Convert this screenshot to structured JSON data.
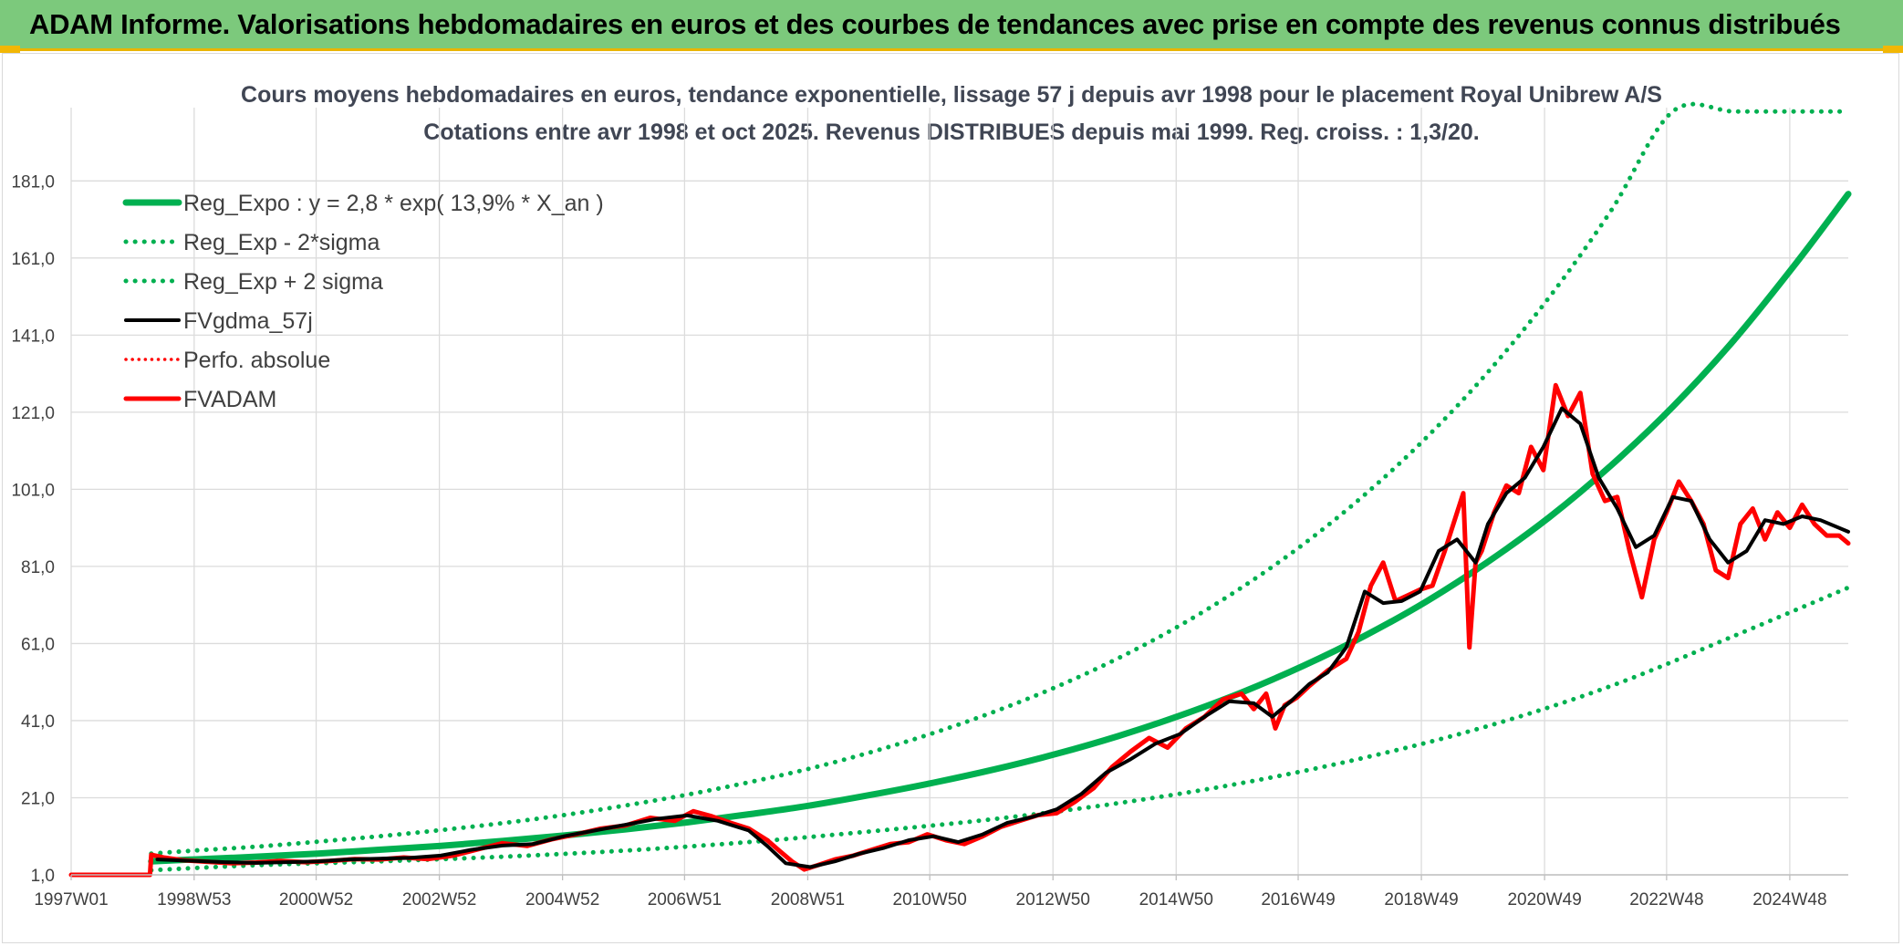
{
  "banner": {
    "title": "ADAM Informe. Valorisations hebdomadaires en euros et des courbes de tendances avec prise en compte des revenus connus distribués"
  },
  "chart_data": {
    "type": "line",
    "title": "Cours moyens hebdomadaires en euros, tendance exponentielle, lissage 57 j depuis avr 1998 pour le placement Royal Unibrew A/S",
    "subtitle": "Cotations entre avr 1998 et oct 2025. Revenus DISTRIBUES depuis mai 1999. Reg. croiss. : 1,3/20.",
    "y_ticks": [
      "1,0",
      "21,0",
      "41,0",
      "61,0",
      "81,0",
      "101,0",
      "121,0",
      "141,0",
      "161,0",
      "181,0"
    ],
    "ylim": [
      1,
      200
    ],
    "x_ticks": [
      "1997W01",
      "1998W53",
      "2000W52",
      "2002W52",
      "2004W52",
      "2006W51",
      "2008W51",
      "2010W50",
      "2012W50",
      "2014W50",
      "2016W49",
      "2018W49",
      "2020W49",
      "2022W48",
      "2024W48"
    ],
    "xlim": [
      1997.0,
      2025.85
    ],
    "grid": true,
    "legend_position": "top-left",
    "legend": [
      {
        "label": "Reg_Expo : y = 2,8 * exp( 13,9% *  X_an )",
        "color": "#00b050",
        "style": "solid-thick"
      },
      {
        "label": "Reg_Exp - 2*sigma",
        "color": "#00b050",
        "style": "dotted"
      },
      {
        "label": "Reg_Exp + 2 sigma",
        "color": "#00b050",
        "style": "dotted"
      },
      {
        "label": "FVgdma_57j",
        "color": "#000000",
        "style": "solid"
      },
      {
        "label": "Perfo. absolue",
        "color": "#ff0000",
        "style": "dotted"
      },
      {
        "label": "FVADAM",
        "color": "#ff0000",
        "style": "solid-thick"
      }
    ],
    "series": [
      {
        "name": "Reg_Expo : y = 2,8 * exp( 13,9% *  X_an )",
        "color": "#00b050",
        "x": [
          1998.3,
          1999,
          2000,
          2001,
          2002,
          2003,
          2004,
          2005,
          2006,
          2007,
          2008,
          2009,
          2010,
          2011,
          2012,
          2013,
          2014,
          2015,
          2016,
          2017,
          2018,
          2019,
          2020,
          2021,
          2022,
          2023,
          2024,
          2025,
          2025.85
        ],
        "values": [
          4.5,
          5.0,
          5.7,
          6.5,
          7.5,
          8.5,
          9.8,
          11.2,
          12.8,
          14.6,
          16.7,
          19.0,
          21.8,
          24.9,
          28.4,
          32.4,
          37.0,
          42.3,
          48.3,
          55.2,
          63.0,
          71.9,
          82.2,
          93.8,
          107.2,
          122.4,
          139.8,
          159.6,
          177.6
        ]
      },
      {
        "name": "Reg_Exp - 2*sigma",
        "color": "#00b050",
        "x": [
          1998.3,
          2000,
          2002,
          2004,
          2006,
          2008,
          2010,
          2012,
          2014,
          2016,
          2018,
          2020,
          2022,
          2024,
          2025.85
        ],
        "values": [
          2.2,
          3.5,
          4.5,
          5.7,
          7.3,
          9.5,
          12.3,
          15.5,
          19.6,
          24.8,
          31.4,
          39.6,
          50.0,
          63.0,
          75.5
        ]
      },
      {
        "name": "Reg_Exp + 2 sigma",
        "color": "#00b050",
        "x": [
          1998.3,
          1999,
          2000,
          2001,
          2002,
          2003,
          2004,
          2005,
          2006,
          2007,
          2008,
          2009,
          2010,
          2011,
          2012,
          2013,
          2014,
          2015,
          2016,
          2017,
          2018,
          2019,
          2020,
          2021,
          2022,
          2023,
          2024,
          2025,
          2025.85
        ],
        "values": [
          6.5,
          7.3,
          8.3,
          9.6,
          11.0,
          12.6,
          14.4,
          16.5,
          19.0,
          21.8,
          25.0,
          28.6,
          32.9,
          37.8,
          43.4,
          49.8,
          57.2,
          65.7,
          75.5,
          86.7,
          99.6,
          114.4,
          131.4,
          150.9,
          173.3,
          199.0,
          199.0,
          199.0,
          199.0
        ]
      },
      {
        "name": "FVgdma_57j",
        "color": "#000000",
        "x": [
          1998.4,
          1999.0,
          1999.5,
          2000.0,
          2000.5,
          2001.0,
          2001.5,
          2002.0,
          2002.5,
          2003.0,
          2003.5,
          2004.0,
          2004.5,
          2005.0,
          2005.5,
          2006.0,
          2006.5,
          2007.0,
          2007.5,
          2008.0,
          2008.3,
          2008.6,
          2009.0,
          2009.4,
          2009.8,
          2010.2,
          2010.6,
          2011.0,
          2011.4,
          2011.8,
          2012.2,
          2012.6,
          2013.0,
          2013.4,
          2013.8,
          2014.2,
          2014.6,
          2015.0,
          2015.4,
          2015.8,
          2016.2,
          2016.5,
          2016.8,
          2017.1,
          2017.4,
          2017.7,
          2018.0,
          2018.3,
          2018.6,
          2018.9,
          2019.2,
          2019.5,
          2019.8,
          2020.0,
          2020.3,
          2020.6,
          2020.9,
          2021.2,
          2021.5,
          2021.8,
          2022.1,
          2022.4,
          2022.7,
          2023.0,
          2023.3,
          2023.6,
          2023.9,
          2024.2,
          2024.5,
          2024.8,
          2025.1,
          2025.4,
          2025.85
        ],
        "values": [
          5.0,
          4.6,
          4.3,
          4.1,
          4.3,
          4.5,
          5.0,
          5.2,
          5.4,
          6.0,
          7.5,
          8.6,
          9.0,
          11.0,
          12.5,
          14.0,
          15.5,
          16.4,
          15.0,
          12.5,
          8.5,
          4.0,
          3.0,
          4.5,
          6.5,
          8.0,
          10.0,
          11.0,
          9.5,
          11.5,
          14.5,
          16.0,
          18.0,
          22.0,
          27.5,
          31.0,
          35.0,
          37.5,
          42.0,
          46.0,
          45.5,
          42.0,
          46.0,
          50.5,
          53.5,
          60.0,
          74.5,
          71.5,
          72.0,
          74.5,
          85.0,
          88.0,
          82.0,
          92.0,
          100.0,
          104.0,
          112.0,
          122.0,
          118.0,
          104.0,
          96.0,
          86.0,
          89.0,
          99.0,
          98.0,
          88.0,
          82.0,
          85.0,
          93.0,
          92.0,
          94.0,
          93.0,
          90.0
        ]
      },
      {
        "name": "Perfo. absolue",
        "color": "#ff0000",
        "x": [
          1997.0,
          1998.3
        ],
        "values": [
          1.0,
          1.0
        ]
      },
      {
        "name": "FVADAM",
        "color": "#ff0000",
        "x": [
          1997.0,
          1998.28,
          1998.3,
          1998.5,
          1998.8,
          1999.2,
          1999.6,
          2000.0,
          2000.4,
          2000.8,
          2001.2,
          2001.6,
          2002.0,
          2002.4,
          2002.8,
          2003.2,
          2003.6,
          2004.0,
          2004.4,
          2004.8,
          2005.2,
          2005.6,
          2006.0,
          2006.4,
          2006.8,
          2007.1,
          2007.4,
          2007.7,
          2008.0,
          2008.3,
          2008.5,
          2008.7,
          2008.9,
          2009.1,
          2009.4,
          2009.7,
          2010.0,
          2010.3,
          2010.6,
          2010.9,
          2011.2,
          2011.5,
          2011.8,
          2012.1,
          2012.4,
          2012.7,
          2013.0,
          2013.3,
          2013.6,
          2013.9,
          2014.2,
          2014.5,
          2014.8,
          2015.1,
          2015.4,
          2015.7,
          2016.0,
          2016.2,
          2016.4,
          2016.55,
          2016.7,
          2016.9,
          2017.1,
          2017.4,
          2017.7,
          2017.9,
          2018.1,
          2018.3,
          2018.5,
          2018.7,
          2018.9,
          2019.1,
          2019.3,
          2019.5,
          2019.6,
          2019.7,
          2019.8,
          2019.9,
          2020.1,
          2020.3,
          2020.5,
          2020.7,
          2020.9,
          2021.1,
          2021.3,
          2021.5,
          2021.7,
          2021.9,
          2022.1,
          2022.3,
          2022.5,
          2022.7,
          2022.9,
          2023.1,
          2023.3,
          2023.5,
          2023.7,
          2023.9,
          2024.1,
          2024.3,
          2024.5,
          2024.7,
          2024.9,
          2025.1,
          2025.3,
          2025.5,
          2025.7,
          2025.85
        ],
        "values": [
          1.0,
          1.0,
          6.2,
          5.5,
          4.8,
          4.4,
          4.0,
          4.2,
          4.6,
          4.3,
          4.6,
          5.1,
          5.0,
          5.5,
          5.1,
          6.0,
          7.6,
          9.2,
          8.5,
          10.2,
          11.5,
          13.0,
          13.8,
          15.8,
          15.0,
          17.5,
          16.2,
          14.5,
          13.0,
          10.0,
          7.2,
          4.5,
          2.4,
          3.4,
          5.0,
          6.0,
          7.5,
          9.0,
          9.5,
          11.5,
          10.0,
          9.0,
          11.0,
          13.5,
          15.0,
          16.5,
          17.0,
          20.0,
          23.5,
          29.0,
          33.0,
          36.5,
          34.0,
          39.0,
          42.0,
          46.5,
          48.0,
          44.0,
          48.0,
          39.0,
          45.0,
          47.0,
          50.0,
          54.0,
          57.0,
          64.0,
          76.0,
          82.0,
          72.0,
          73.5,
          75.0,
          76.0,
          85.0,
          95.0,
          100.0,
          60.0,
          82.0,
          85.0,
          95.0,
          102.0,
          100.0,
          112.0,
          106.0,
          128.0,
          120.0,
          126.0,
          105.0,
          98.0,
          99.0,
          85.0,
          73.0,
          88.0,
          95.0,
          103.0,
          98.0,
          92.0,
          80.0,
          78.0,
          92.0,
          96.0,
          88.0,
          95.0,
          91.0,
          97.0,
          92.0,
          89.0,
          89.0,
          87.0
        ]
      }
    ]
  }
}
